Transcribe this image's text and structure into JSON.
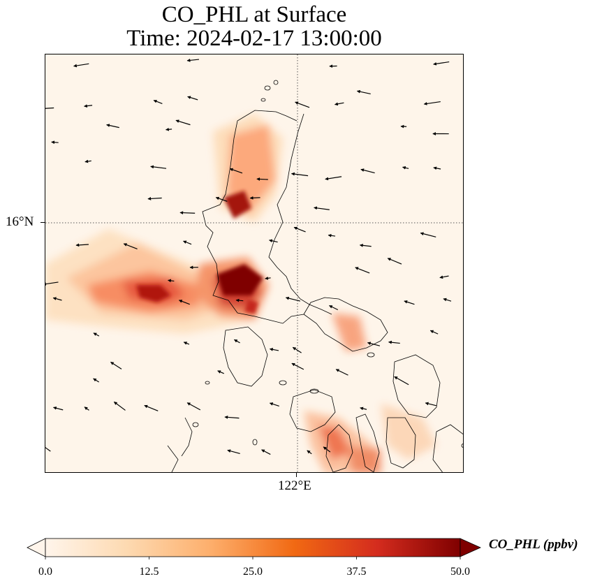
{
  "title": {
    "line1": "CO_PHL at Surface",
    "line2": "Time: 2024-02-17 13:00:00"
  },
  "map": {
    "latitude_label": "16°N",
    "longitude_label": "122°E",
    "gridlines": "dotted"
  },
  "colorbar": {
    "label": "CO_PHL (ppbv)",
    "min": 0.0,
    "max": 50.0,
    "ticks": [
      "0.0",
      "12.5",
      "25.0",
      "37.5",
      "50.0"
    ],
    "extend": "both",
    "colors": [
      "#fff5eb",
      "#fdd9b0",
      "#fdae6b",
      "#f16913",
      "#d42c1e",
      "#7f0000"
    ]
  },
  "chart_data": {
    "type": "heatmap",
    "title": "CO_PHL at Surface\nTime: 2024-02-17 13:00:00",
    "variable": "CO_PHL",
    "units": "ppbv",
    "range": [
      0.0,
      50.0
    ],
    "xtick_labels": [
      "122°E"
    ],
    "ytick_labels": [
      "16°N"
    ],
    "overlays": [
      "coastlines",
      "wind vectors"
    ]
  }
}
